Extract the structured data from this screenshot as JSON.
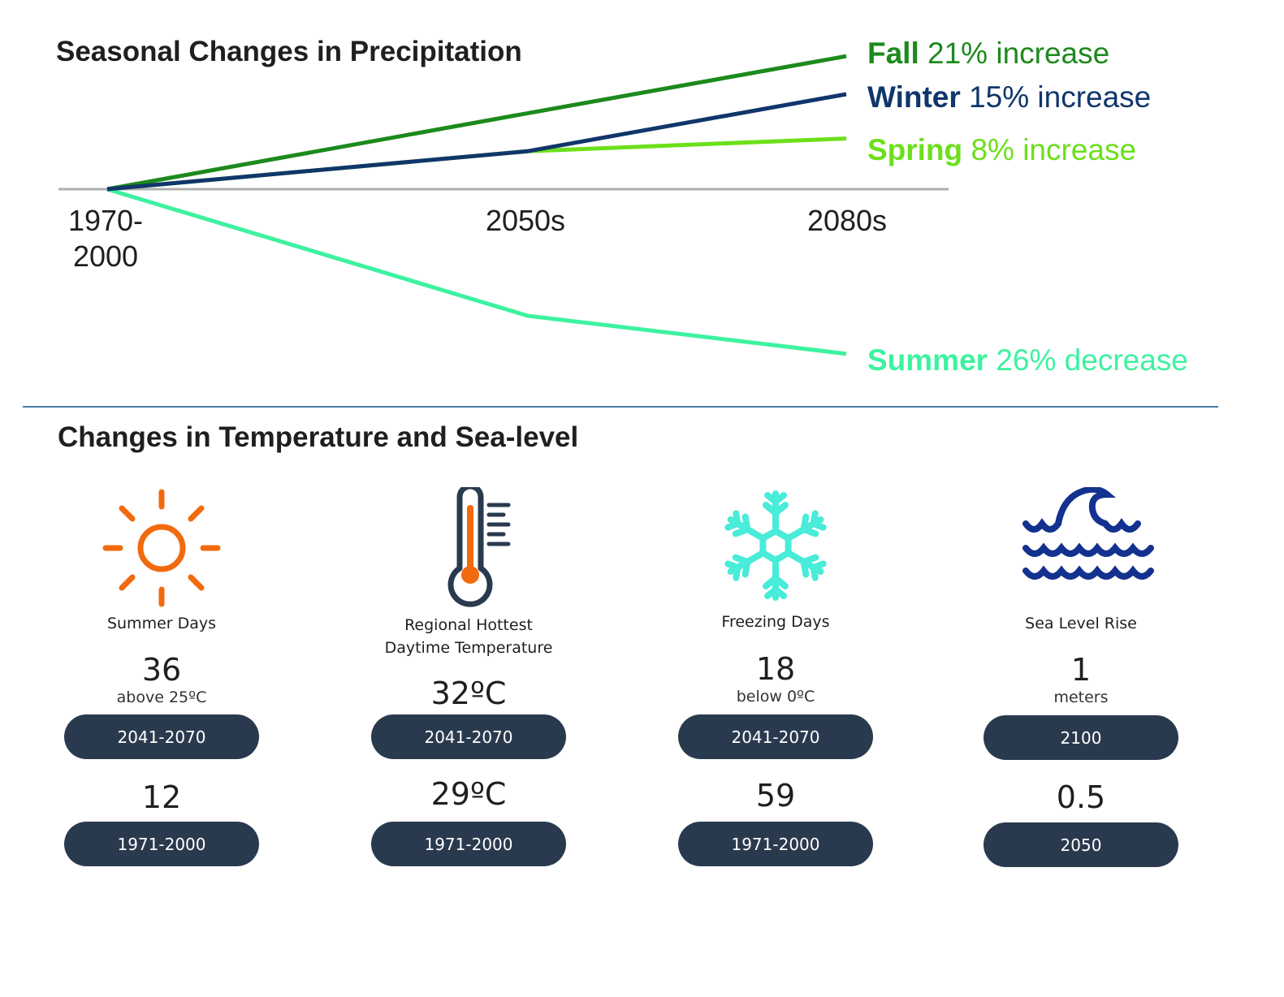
{
  "precip": {
    "title": "Seasonal Changes in Precipitation"
  },
  "temp": {
    "title": "Changes in Temperature and Sea-level"
  },
  "colors": {
    "fall": "#1c8a1c",
    "winter": "#10366b",
    "spring": "#6be01a",
    "summer": "#3df2a0",
    "axis": "#b0b0b0",
    "divider": "#4a7ca6",
    "pill": "#2a3a4e",
    "sun": "#f26a0f",
    "thermo_body": "#2a3a4e",
    "thermo_fill": "#f26a0f",
    "snow": "#48ecd8",
    "wave": "#13318f"
  },
  "chart_data": {
    "type": "line",
    "title": "Seasonal Changes in Precipitation",
    "x": [
      "1970-2000",
      "2050s",
      "2080s"
    ],
    "x_tick_labels": [
      "1970-\n2000",
      "2050s",
      "2080s"
    ],
    "xlabel": "",
    "ylabel": "",
    "yunit": "% change in precipitation",
    "ylim": [
      -26,
      21
    ],
    "grid": false,
    "legend": "right, inline labels",
    "series": [
      {
        "name": "Fall",
        "values": [
          0,
          12,
          21
        ],
        "label_bold": "Fall",
        "label_rest": " 21% increase",
        "color_key": "fall"
      },
      {
        "name": "Winter",
        "values": [
          0,
          6,
          15
        ],
        "label_bold": "Winter",
        "label_rest": " 15% increase",
        "color_key": "winter"
      },
      {
        "name": "Spring",
        "values": [
          0,
          6,
          8
        ],
        "label_bold": "Spring",
        "label_rest": " 8% increase",
        "color_key": "spring"
      },
      {
        "name": "Summer",
        "values": [
          0,
          -20,
          -26
        ],
        "label_bold": "Summer",
        "label_rest": " 26% decrease",
        "color_key": "summer"
      }
    ]
  },
  "cards": [
    {
      "icon": "sun-icon",
      "label": "Summer Days",
      "future_value": "36",
      "future_unit": "above 25ºC",
      "future_period": "2041-2070",
      "past_value": "12",
      "past_period": "1971-2000"
    },
    {
      "icon": "thermometer-icon",
      "label": "Regional Hottest Daytime Temperature",
      "future_value": "32ºC",
      "future_unit": "",
      "future_period": "2041-2070",
      "past_value": "29ºC",
      "past_period": "1971-2000"
    },
    {
      "icon": "snowflake-icon",
      "label": "Freezing Days",
      "future_value": "18",
      "future_unit": "below 0ºC",
      "future_period": "2041-2070",
      "past_value": "59",
      "past_period": "1971-2000"
    },
    {
      "icon": "wave-icon",
      "label": "Sea Level Rise",
      "future_value": "1",
      "future_unit": "meters",
      "future_period": "2100",
      "past_value": "0.5",
      "past_period": "2050"
    }
  ]
}
